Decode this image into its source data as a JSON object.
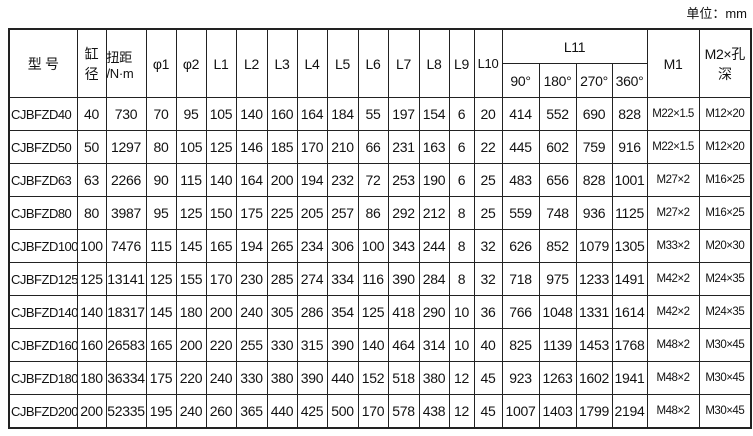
{
  "unit_label": "单位：mm",
  "headers": {
    "model": "型 号",
    "bore": "缸\n径",
    "bore_line1": "缸",
    "bore_line2": "径",
    "torque_line1": "扭距",
    "torque_line2": "/N·m",
    "phi1": "φ1",
    "phi2": "φ2",
    "L1": "L1",
    "L2": "L2",
    "L3": "L3",
    "L4": "L4",
    "L5": "L5",
    "L6": "L6",
    "L7": "L7",
    "L8": "L8",
    "L9": "L9",
    "L10": "L10",
    "L11": "L11",
    "L11_sub": [
      "90°",
      "180°",
      "270°",
      "360°"
    ],
    "M1": "M1",
    "M2_line1": "M2×孔",
    "M2_line2": "深"
  },
  "rows": [
    [
      "CJBFZD40",
      "40",
      "730",
      "70",
      "95",
      "105",
      "140",
      "160",
      "164",
      "184",
      "55",
      "197",
      "154",
      "6",
      "20",
      "414",
      "552",
      "690",
      "828",
      "M22×1.5",
      "M12×20"
    ],
    [
      "CJBFZD50",
      "50",
      "1297",
      "80",
      "105",
      "125",
      "146",
      "185",
      "170",
      "210",
      "66",
      "231",
      "163",
      "6",
      "22",
      "445",
      "602",
      "759",
      "916",
      "M22×1.5",
      "M12×20"
    ],
    [
      "CJBFZD63",
      "63",
      "2266",
      "90",
      "115",
      "140",
      "164",
      "200",
      "194",
      "232",
      "72",
      "253",
      "190",
      "6",
      "25",
      "483",
      "656",
      "828",
      "1001",
      "M27×2",
      "M16×25"
    ],
    [
      "CJBFZD80",
      "80",
      "3987",
      "95",
      "125",
      "150",
      "175",
      "225",
      "205",
      "257",
      "86",
      "292",
      "212",
      "8",
      "25",
      "559",
      "748",
      "936",
      "1125",
      "M27×2",
      "M16×25"
    ],
    [
      "CJBFZD100",
      "100",
      "7476",
      "115",
      "145",
      "165",
      "194",
      "265",
      "234",
      "306",
      "100",
      "343",
      "244",
      "8",
      "32",
      "626",
      "852",
      "1079",
      "1305",
      "M33×2",
      "M20×30"
    ],
    [
      "CJBFZD125",
      "125",
      "13141",
      "125",
      "155",
      "170",
      "230",
      "285",
      "274",
      "334",
      "116",
      "390",
      "284",
      "8",
      "32",
      "718",
      "975",
      "1233",
      "1491",
      "M42×2",
      "M24×35"
    ],
    [
      "CJBFZD140",
      "140",
      "18317",
      "145",
      "180",
      "200",
      "240",
      "305",
      "286",
      "354",
      "125",
      "418",
      "290",
      "10",
      "36",
      "766",
      "1048",
      "1331",
      "1614",
      "M42×2",
      "M24×35"
    ],
    [
      "CJBFZD160",
      "160",
      "26583",
      "165",
      "200",
      "220",
      "255",
      "330",
      "315",
      "390",
      "140",
      "464",
      "314",
      "10",
      "40",
      "825",
      "1139",
      "1453",
      "1768",
      "M48×2",
      "M30×45"
    ],
    [
      "CJBFZD180",
      "180",
      "36334",
      "175",
      "220",
      "240",
      "330",
      "380",
      "390",
      "440",
      "152",
      "518",
      "380",
      "12",
      "45",
      "923",
      "1263",
      "1602",
      "1941",
      "M48×2",
      "M30×45"
    ],
    [
      "CJBFZD200",
      "200",
      "52335",
      "195",
      "240",
      "260",
      "365",
      "440",
      "425",
      "500",
      "170",
      "578",
      "438",
      "12",
      "45",
      "1007",
      "1403",
      "1799",
      "2194",
      "M48×2",
      "M30×45"
    ]
  ]
}
